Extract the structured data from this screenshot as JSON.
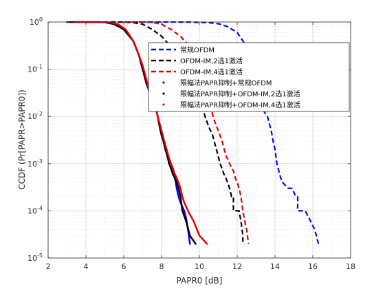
{
  "chart_data": {
    "type": "line",
    "title": "",
    "xlabel": "PAPR0 [dB]",
    "ylabel": "CCDF (Pr[PAPR>PAPR0])",
    "xlim": [
      2,
      18
    ],
    "ylim": [
      1e-05,
      1
    ],
    "yscale": "log",
    "grid": true,
    "minor_grid": true,
    "legend_position": "upper-right",
    "xticks": [
      2,
      4,
      6,
      8,
      10,
      12,
      14,
      16,
      18
    ],
    "xtick_labels": [
      "2",
      "4",
      "6",
      "8",
      "10",
      "12",
      "14",
      "16",
      "18"
    ],
    "yticks": [
      1e-05,
      0.0001,
      0.001,
      0.01,
      0.1,
      1
    ],
    "ytick_labels": [
      {
        "base": "10",
        "exp": "-5"
      },
      {
        "base": "10",
        "exp": "-4"
      },
      {
        "base": "10",
        "exp": "-3"
      },
      {
        "base": "10",
        "exp": "-2"
      },
      {
        "base": "10",
        "exp": "-1"
      },
      {
        "base": "10",
        "exp": "0"
      }
    ],
    "series": [
      {
        "name": "常规OFDM",
        "color": "#0000ff",
        "style": "dashed",
        "points": [
          [
            4.5,
            1
          ],
          [
            8,
            1
          ],
          [
            9.5,
            0.995
          ],
          [
            10.5,
            0.97
          ],
          [
            11,
            0.92
          ],
          [
            11.5,
            0.8
          ],
          [
            12,
            0.6
          ],
          [
            12.3,
            0.4
          ],
          [
            12.5,
            0.3
          ],
          [
            12.7,
            0.2
          ],
          [
            13,
            0.1
          ],
          [
            13.1,
            0.05
          ],
          [
            13.2,
            0.03
          ],
          [
            13.3,
            0.015
          ],
          [
            13.6,
            0.01
          ],
          [
            13.7,
            0.007
          ],
          [
            13.8,
            0.005
          ],
          [
            13.9,
            0.003
          ],
          [
            14,
            0.002
          ],
          [
            14.1,
            0.001
          ],
          [
            14.2,
            0.0007
          ],
          [
            14.3,
            0.0005
          ],
          [
            14.4,
            0.0004
          ],
          [
            14.7,
            0.0003
          ],
          [
            14.9,
            0.0003
          ],
          [
            15.1,
            0.0002
          ],
          [
            15.2,
            0.0002
          ],
          [
            15.2,
            0.0001
          ],
          [
            15.6,
            0.0001
          ],
          [
            15.8,
            7e-05
          ],
          [
            16.1,
            4e-05
          ],
          [
            16.3,
            2e-05
          ]
        ]
      },
      {
        "name": "OFDM-IM,2选1激活",
        "color": "#000000",
        "style": "dashed",
        "points": [
          [
            4.5,
            1
          ],
          [
            5.5,
            1
          ],
          [
            6,
            0.995
          ],
          [
            6.5,
            0.97
          ],
          [
            7,
            0.9
          ],
          [
            7.5,
            0.7
          ],
          [
            8,
            0.5
          ],
          [
            8.5,
            0.3
          ],
          [
            9,
            0.15
          ],
          [
            9.4,
            0.08
          ],
          [
            9.8,
            0.04
          ],
          [
            10.1,
            0.02
          ],
          [
            10.3,
            0.01
          ],
          [
            10.5,
            0.006
          ],
          [
            10.7,
            0.004
          ],
          [
            10.9,
            0.002
          ],
          [
            11.1,
            0.001
          ],
          [
            11.3,
            0.0006
          ],
          [
            11.5,
            0.0004
          ],
          [
            11.6,
            0.0003
          ],
          [
            11.7,
            0.0002
          ],
          [
            11.8,
            0.0002
          ],
          [
            11.8,
            0.0001
          ],
          [
            12.1,
            0.0001
          ],
          [
            12.2,
            6e-05
          ],
          [
            12.3,
            3e-05
          ],
          [
            12.3,
            2e-05
          ]
        ]
      },
      {
        "name": "OFDM-IM,4选1激活",
        "color": "#e00000",
        "style": "dashed",
        "points": [
          [
            6,
            1
          ],
          [
            7,
            1
          ],
          [
            7.5,
            0.98
          ],
          [
            8,
            0.9
          ],
          [
            8.5,
            0.7
          ],
          [
            9,
            0.5
          ],
          [
            9.5,
            0.3
          ],
          [
            9.8,
            0.15
          ],
          [
            10.1,
            0.07
          ],
          [
            10.4,
            0.03
          ],
          [
            10.6,
            0.015
          ],
          [
            10.8,
            0.008
          ],
          [
            11,
            0.005
          ],
          [
            11.2,
            0.003
          ],
          [
            11.4,
            0.0015
          ],
          [
            11.6,
            0.001
          ],
          [
            11.8,
            0.0007
          ],
          [
            11.9,
            0.0005
          ],
          [
            12,
            0.0004
          ],
          [
            12.1,
            0.0003
          ],
          [
            12.2,
            0.0002
          ],
          [
            12.3,
            0.0001
          ],
          [
            12.4,
            6e-05
          ],
          [
            12.5,
            4e-05
          ],
          [
            12.6,
            2e-05
          ]
        ]
      },
      {
        "name": "限幅法PAPR抑制+常规OFDM",
        "color": "#0000ff",
        "style": "dotted",
        "points": [
          [
            3,
            1
          ],
          [
            4,
            1
          ],
          [
            5,
            0.99
          ],
          [
            5.5,
            0.9
          ],
          [
            6,
            0.7
          ],
          [
            6.5,
            0.4
          ],
          [
            6.8,
            0.2
          ],
          [
            7,
            0.1
          ],
          [
            7.2,
            0.05
          ],
          [
            7.4,
            0.03
          ],
          [
            7.6,
            0.02
          ],
          [
            7.8,
            0.01
          ],
          [
            7.9,
            0.006
          ],
          [
            8,
            0.004
          ],
          [
            8.1,
            0.003
          ],
          [
            8.2,
            0.002
          ],
          [
            8.3,
            0.0015
          ],
          [
            8.4,
            0.001
          ],
          [
            8.5,
            0.0008
          ],
          [
            8.6,
            0.0006
          ],
          [
            8.7,
            0.0005
          ],
          [
            8.75,
            0.0004
          ],
          [
            8.8,
            0.0003
          ],
          [
            8.9,
            0.0002
          ],
          [
            9,
            0.00015
          ],
          [
            9.2,
            0.0001
          ],
          [
            9.3,
            7e-05
          ],
          [
            9.4,
            4e-05
          ],
          [
            9.5,
            2e-05
          ]
        ]
      },
      {
        "name": "限幅法PAPR抑制+OFDM-IM,2选1激活",
        "color": "#000000",
        "style": "dotted",
        "points": [
          [
            3.2,
            1
          ],
          [
            4.2,
            1
          ],
          [
            5,
            0.99
          ],
          [
            5.5,
            0.9
          ],
          [
            6,
            0.7
          ],
          [
            6.5,
            0.4
          ],
          [
            6.8,
            0.2
          ],
          [
            7,
            0.1
          ],
          [
            7.2,
            0.05
          ],
          [
            7.4,
            0.03
          ],
          [
            7.6,
            0.02
          ],
          [
            7.8,
            0.01
          ],
          [
            7.9,
            0.006
          ],
          [
            8,
            0.004
          ],
          [
            8.1,
            0.003
          ],
          [
            8.2,
            0.002
          ],
          [
            8.3,
            0.0015
          ],
          [
            8.4,
            0.001
          ],
          [
            8.5,
            0.0008
          ],
          [
            8.6,
            0.0006
          ],
          [
            8.7,
            0.0005
          ],
          [
            8.8,
            0.0004
          ],
          [
            8.9,
            0.0003
          ],
          [
            9,
            0.0002
          ],
          [
            9.1,
            0.0001
          ],
          [
            9.3,
            6e-05
          ],
          [
            9.5,
            3e-05
          ],
          [
            9.8,
            2e-05
          ]
        ]
      },
      {
        "name": "限幅法PAPR抑制+OFDM-IM,4选1激活",
        "color": "#e00000",
        "style": "dotted",
        "points": [
          [
            3.4,
            1
          ],
          [
            4.4,
            1
          ],
          [
            5.2,
            0.99
          ],
          [
            5.7,
            0.9
          ],
          [
            6.1,
            0.7
          ],
          [
            6.5,
            0.4
          ],
          [
            6.8,
            0.2
          ],
          [
            7,
            0.12
          ],
          [
            7.2,
            0.06
          ],
          [
            7.4,
            0.03
          ],
          [
            7.6,
            0.02
          ],
          [
            7.8,
            0.01
          ],
          [
            7.9,
            0.007
          ],
          [
            8,
            0.005
          ],
          [
            8.1,
            0.0035
          ],
          [
            8.2,
            0.0025
          ],
          [
            8.3,
            0.0018
          ],
          [
            8.4,
            0.0013
          ],
          [
            8.5,
            0.001
          ],
          [
            8.6,
            0.0008
          ],
          [
            8.7,
            0.0006
          ],
          [
            8.8,
            0.0005
          ],
          [
            8.9,
            0.0004
          ],
          [
            9,
            0.0003
          ],
          [
            9.1,
            0.0002
          ],
          [
            9.2,
            0.00015
          ],
          [
            9.4,
            0.0001
          ],
          [
            9.7,
            6e-05
          ],
          [
            10,
            3e-05
          ],
          [
            10.4,
            2e-05
          ]
        ]
      }
    ]
  }
}
